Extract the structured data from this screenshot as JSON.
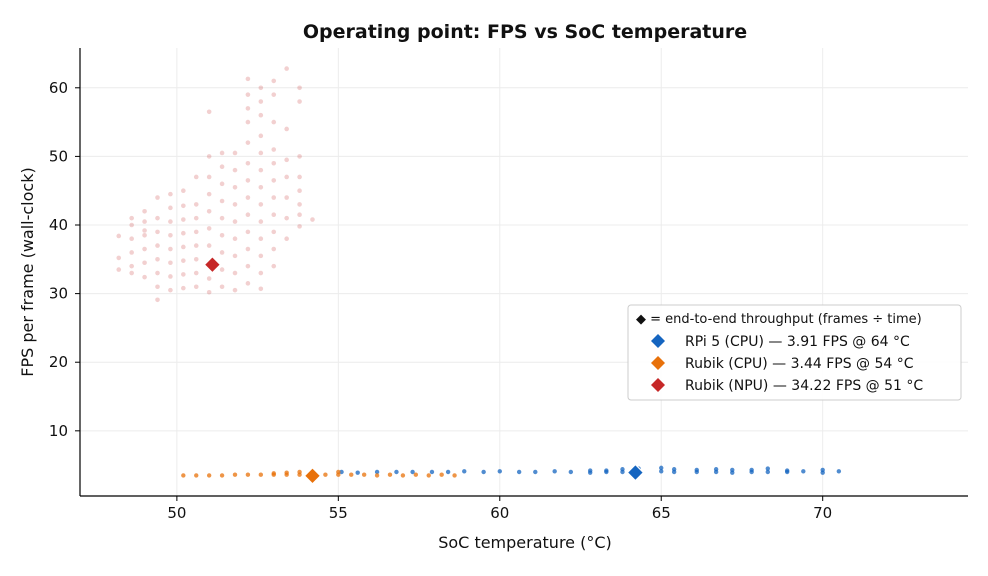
{
  "chart_data": {
    "type": "scatter",
    "title": "Operating point: FPS vs SoC temperature",
    "xlabel": "SoC temperature (°C)",
    "ylabel": "FPS per frame (wall-clock)",
    "xlim": [
      47.0,
      74.5
    ],
    "ylim": [
      0.5,
      65.8
    ],
    "xticks": [
      50,
      55,
      60,
      65,
      70
    ],
    "yticks": [
      10,
      20,
      30,
      40,
      50,
      60
    ],
    "grid": true,
    "legend": {
      "placement": "center-right",
      "title": "◆ = end-to-end throughput (frames ÷ time)",
      "entries": [
        {
          "label": "RPi 5 (CPU) — 3.91 FPS @ 64 °C",
          "color": "#1565c0"
        },
        {
          "label": "Rubik (CPU) — 3.44 FPS @ 54 °C",
          "color": "#e8710a"
        },
        {
          "label": "Rubik (NPU) — 34.22 FPS @ 51 °C",
          "color": "#c62828"
        }
      ]
    },
    "series": [
      {
        "name": "RPi 5 (CPU)",
        "color": "#1565c0",
        "summary": {
          "x": 64.2,
          "y": 3.91
        },
        "points": [
          [
            55.1,
            4.0
          ],
          [
            55.6,
            3.9
          ],
          [
            56.2,
            4.0
          ],
          [
            56.8,
            4.0
          ],
          [
            57.3,
            4.0
          ],
          [
            57.9,
            4.0
          ],
          [
            58.4,
            4.0
          ],
          [
            58.9,
            4.1
          ],
          [
            59.5,
            4.0
          ],
          [
            60.0,
            4.1
          ],
          [
            60.6,
            4.0
          ],
          [
            61.1,
            4.0
          ],
          [
            61.7,
            4.1
          ],
          [
            62.2,
            4.0
          ],
          [
            62.8,
            4.2
          ],
          [
            62.8,
            3.9
          ],
          [
            63.3,
            4.2
          ],
          [
            63.3,
            4.0
          ],
          [
            63.8,
            4.4
          ],
          [
            63.8,
            4.0
          ],
          [
            64.3,
            4.5
          ],
          [
            64.3,
            4.0
          ],
          [
            65.0,
            4.6
          ],
          [
            65.0,
            4.1
          ],
          [
            65.4,
            4.4
          ],
          [
            65.4,
            4.0
          ],
          [
            66.1,
            4.3
          ],
          [
            66.1,
            4.0
          ],
          [
            66.7,
            4.4
          ],
          [
            66.7,
            4.0
          ],
          [
            67.2,
            4.3
          ],
          [
            67.2,
            3.9
          ],
          [
            67.8,
            4.3
          ],
          [
            67.8,
            4.0
          ],
          [
            68.3,
            4.5
          ],
          [
            68.3,
            4.0
          ],
          [
            68.9,
            4.2
          ],
          [
            68.9,
            4.0
          ],
          [
            69.4,
            4.1
          ],
          [
            70.0,
            4.3
          ],
          [
            70.0,
            3.9
          ],
          [
            70.5,
            4.1
          ]
        ]
      },
      {
        "name": "Rubik (CPU)",
        "color": "#e8710a",
        "summary": {
          "x": 54.2,
          "y": 3.44
        },
        "points": [
          [
            50.2,
            3.5
          ],
          [
            50.6,
            3.5
          ],
          [
            51.0,
            3.5
          ],
          [
            51.4,
            3.5
          ],
          [
            51.8,
            3.6
          ],
          [
            52.2,
            3.6
          ],
          [
            52.6,
            3.6
          ],
          [
            53.0,
            3.6
          ],
          [
            53.0,
            3.8
          ],
          [
            53.4,
            3.6
          ],
          [
            53.4,
            3.9
          ],
          [
            53.8,
            3.6
          ],
          [
            53.8,
            4.0
          ],
          [
            54.2,
            3.9
          ],
          [
            54.6,
            3.6
          ],
          [
            55.0,
            3.6
          ],
          [
            55.0,
            4.0
          ],
          [
            55.4,
            3.6
          ],
          [
            55.8,
            3.6
          ],
          [
            56.2,
            3.5
          ],
          [
            56.6,
            3.6
          ],
          [
            57.0,
            3.5
          ],
          [
            57.4,
            3.6
          ],
          [
            57.8,
            3.5
          ],
          [
            58.2,
            3.6
          ],
          [
            58.6,
            3.5
          ]
        ]
      },
      {
        "name": "Rubik (NPU)",
        "color": "#c62828",
        "summary": {
          "x": 51.1,
          "y": 34.22
        },
        "points": [
          [
            48.2,
            33.5
          ],
          [
            48.2,
            35.2
          ],
          [
            48.2,
            38.4
          ],
          [
            48.6,
            33.0
          ],
          [
            48.6,
            34.0
          ],
          [
            48.6,
            36.0
          ],
          [
            48.6,
            38.0
          ],
          [
            48.6,
            40.0
          ],
          [
            48.6,
            41.0
          ],
          [
            49.0,
            32.4
          ],
          [
            49.0,
            34.5
          ],
          [
            49.0,
            36.5
          ],
          [
            49.0,
            38.5
          ],
          [
            49.0,
            40.5
          ],
          [
            49.0,
            42.0
          ],
          [
            49.0,
            39.2
          ],
          [
            49.4,
            29.1
          ],
          [
            49.4,
            31.0
          ],
          [
            49.4,
            33.0
          ],
          [
            49.4,
            35.0
          ],
          [
            49.4,
            37.0
          ],
          [
            49.4,
            39.0
          ],
          [
            49.4,
            41.0
          ],
          [
            49.4,
            44.0
          ],
          [
            49.8,
            30.5
          ],
          [
            49.8,
            32.5
          ],
          [
            49.8,
            34.5
          ],
          [
            49.8,
            36.5
          ],
          [
            49.8,
            38.5
          ],
          [
            49.8,
            40.5
          ],
          [
            49.8,
            42.5
          ],
          [
            49.8,
            44.5
          ],
          [
            50.2,
            30.8
          ],
          [
            50.2,
            32.8
          ],
          [
            50.2,
            34.8
          ],
          [
            50.2,
            36.8
          ],
          [
            50.2,
            38.8
          ],
          [
            50.2,
            40.8
          ],
          [
            50.2,
            42.8
          ],
          [
            50.2,
            45.0
          ],
          [
            50.6,
            31.0
          ],
          [
            50.6,
            33.0
          ],
          [
            50.6,
            35.0
          ],
          [
            50.6,
            37.0
          ],
          [
            50.6,
            39.0
          ],
          [
            50.6,
            41.0
          ],
          [
            50.6,
            43.0
          ],
          [
            50.6,
            47.0
          ],
          [
            51.0,
            30.2
          ],
          [
            51.0,
            32.2
          ],
          [
            51.0,
            34.5
          ],
          [
            51.0,
            37.0
          ],
          [
            51.0,
            39.5
          ],
          [
            51.0,
            42.0
          ],
          [
            51.0,
            44.5
          ],
          [
            51.0,
            47.0
          ],
          [
            51.0,
            50.0
          ],
          [
            51.0,
            56.5
          ],
          [
            51.4,
            31.0
          ],
          [
            51.4,
            33.5
          ],
          [
            51.4,
            36.0
          ],
          [
            51.4,
            38.5
          ],
          [
            51.4,
            41.0
          ],
          [
            51.4,
            43.5
          ],
          [
            51.4,
            46.0
          ],
          [
            51.4,
            48.5
          ],
          [
            51.4,
            50.5
          ],
          [
            51.8,
            30.5
          ],
          [
            51.8,
            33.0
          ],
          [
            51.8,
            35.5
          ],
          [
            51.8,
            38.0
          ],
          [
            51.8,
            40.5
          ],
          [
            51.8,
            43.0
          ],
          [
            51.8,
            45.5
          ],
          [
            51.8,
            48.0
          ],
          [
            51.8,
            50.5
          ],
          [
            52.2,
            31.5
          ],
          [
            52.2,
            34.0
          ],
          [
            52.2,
            36.5
          ],
          [
            52.2,
            39.0
          ],
          [
            52.2,
            41.5
          ],
          [
            52.2,
            44.0
          ],
          [
            52.2,
            46.5
          ],
          [
            52.2,
            49.0
          ],
          [
            52.2,
            52.0
          ],
          [
            52.2,
            55.0
          ],
          [
            52.2,
            57.0
          ],
          [
            52.2,
            59.0
          ],
          [
            52.2,
            61.3
          ],
          [
            52.6,
            30.7
          ],
          [
            52.6,
            33.0
          ],
          [
            52.6,
            35.5
          ],
          [
            52.6,
            38.0
          ],
          [
            52.6,
            40.5
          ],
          [
            52.6,
            43.0
          ],
          [
            52.6,
            45.5
          ],
          [
            52.6,
            48.0
          ],
          [
            52.6,
            50.5
          ],
          [
            52.6,
            53.0
          ],
          [
            52.6,
            56.0
          ],
          [
            52.6,
            58.0
          ],
          [
            52.6,
            60.0
          ],
          [
            53.0,
            34.0
          ],
          [
            53.0,
            36.5
          ],
          [
            53.0,
            39.0
          ],
          [
            53.0,
            41.5
          ],
          [
            53.0,
            44.0
          ],
          [
            53.0,
            46.5
          ],
          [
            53.0,
            49.0
          ],
          [
            53.0,
            51.0
          ],
          [
            53.0,
            55.0
          ],
          [
            53.0,
            59.0
          ],
          [
            53.0,
            61.0
          ],
          [
            53.4,
            38.0
          ],
          [
            53.4,
            41.0
          ],
          [
            53.4,
            44.0
          ],
          [
            53.4,
            47.0
          ],
          [
            53.4,
            49.5
          ],
          [
            53.4,
            54.0
          ],
          [
            53.4,
            62.8
          ],
          [
            53.8,
            39.8
          ],
          [
            53.8,
            41.5
          ],
          [
            53.8,
            43.0
          ],
          [
            53.8,
            45.0
          ],
          [
            53.8,
            47.0
          ],
          [
            53.8,
            50.0
          ],
          [
            53.8,
            58.0
          ],
          [
            53.8,
            60.0
          ],
          [
            54.2,
            40.8
          ]
        ]
      }
    ]
  }
}
